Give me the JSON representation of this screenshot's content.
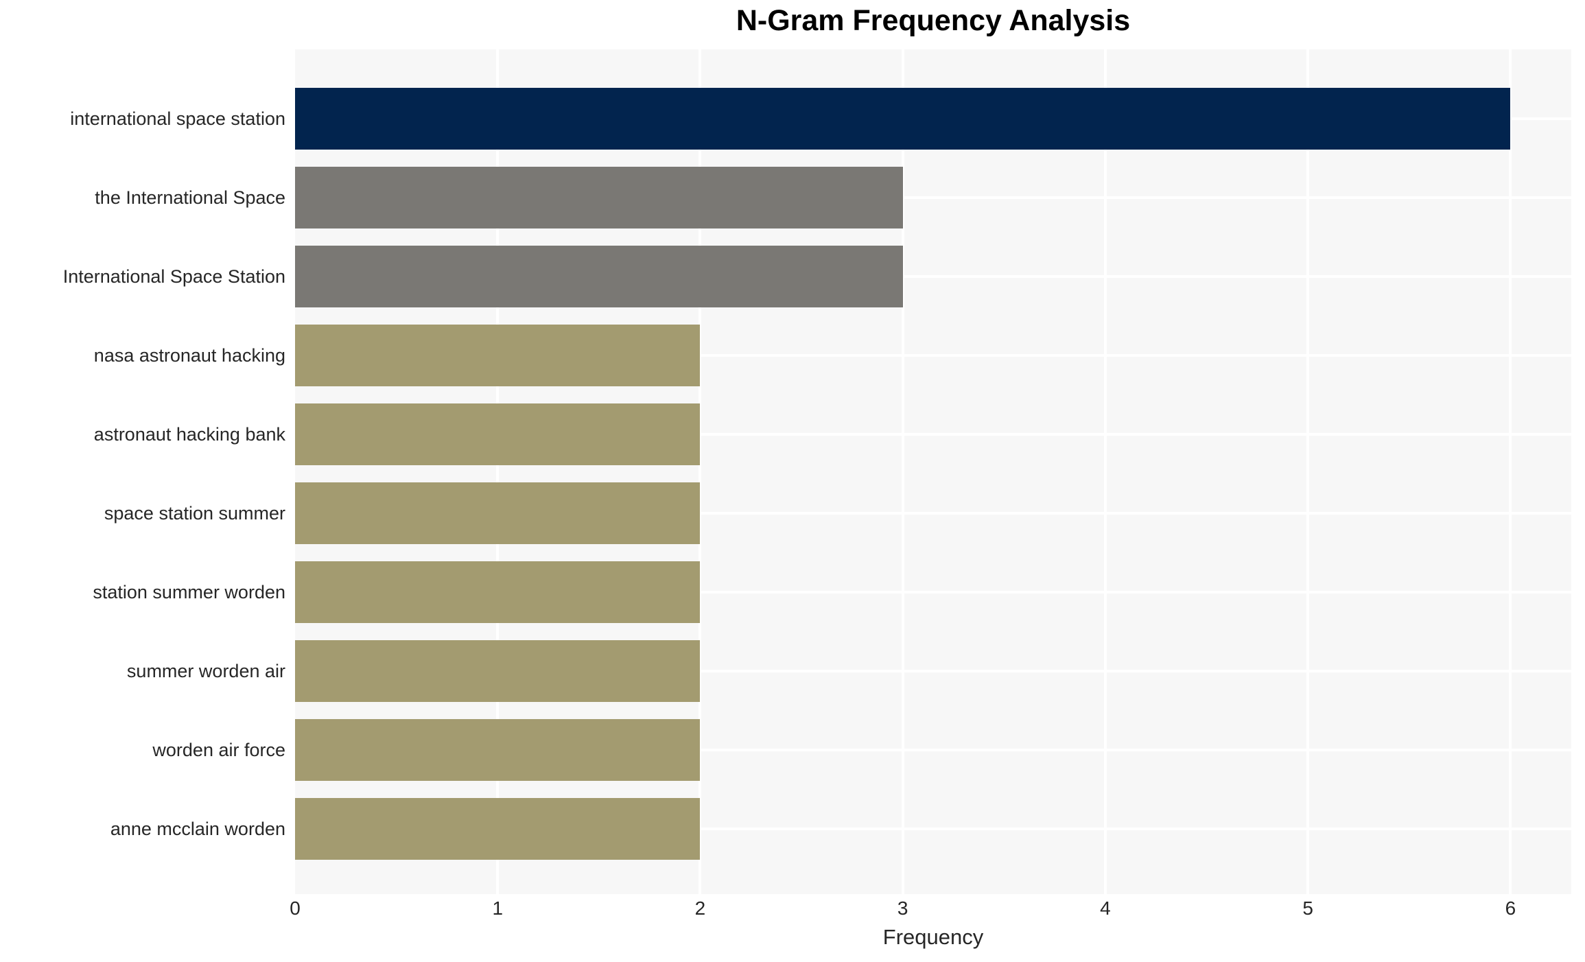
{
  "chart_data": {
    "type": "bar",
    "orientation": "horizontal",
    "title": "N-Gram Frequency Analysis",
    "xlabel": "Frequency",
    "ylabel": "",
    "categories": [
      "international space station",
      "the International Space",
      "International Space Station",
      "nasa astronaut hacking",
      "astronaut hacking bank",
      "space station summer",
      "station summer worden",
      "summer worden air",
      "worden air force",
      "anne mcclain worden"
    ],
    "values": [
      6,
      3,
      3,
      2,
      2,
      2,
      2,
      2,
      2,
      2
    ],
    "bar_colors": [
      "#02244E",
      "#7A7874",
      "#7A7874",
      "#A39B70",
      "#A39B70",
      "#A39B70",
      "#A39B70",
      "#A39B70",
      "#A39B70",
      "#A39B70"
    ],
    "x_ticks": [
      "0",
      "1",
      "2",
      "3",
      "4",
      "5",
      "6"
    ],
    "xlim": [
      0,
      6.3
    ],
    "legend": "none",
    "grid": "on",
    "colors": {
      "plot_background": "#F7F7F7",
      "page_background": "#FFFFFF",
      "gridline": "#FFFFFF",
      "axis_text": "#262626",
      "title_text": "#000000"
    }
  }
}
